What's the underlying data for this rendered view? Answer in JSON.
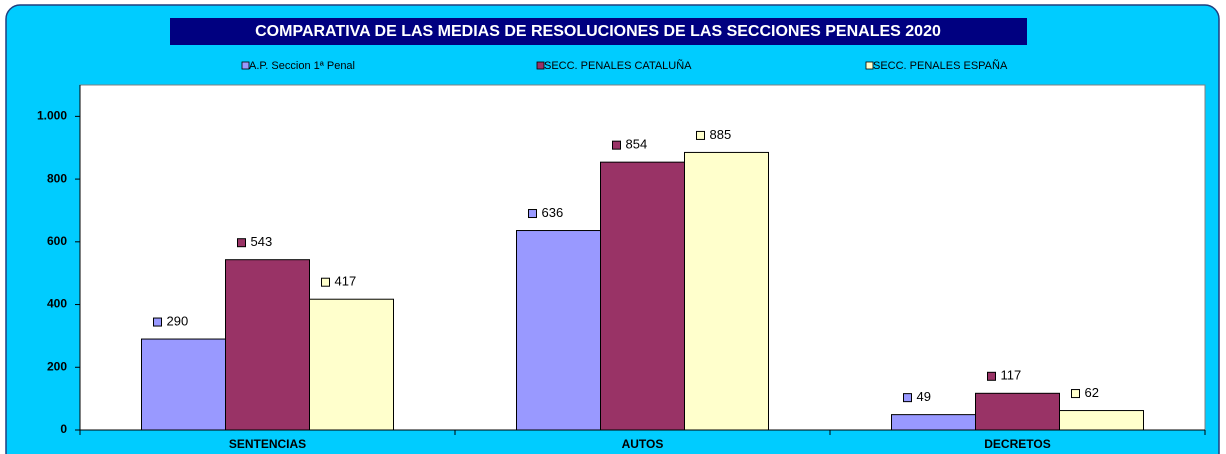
{
  "chart_data": {
    "type": "bar",
    "title": "COMPARATIVA DE LAS MEDIAS DE RESOLUCIONES  DE LAS SECCIONES PENALES  2020",
    "categories": [
      "SENTENCIAS",
      "AUTOS",
      "DECRETOS"
    ],
    "series": [
      {
        "name": "A.P. Seccion 1ª Penal",
        "color": "#9999ff",
        "values": [
          290,
          636,
          49
        ]
      },
      {
        "name": "SECC. PENALES CATALUÑA",
        "color": "#993366",
        "values": [
          543,
          854,
          117
        ]
      },
      {
        "name": "SECC. PENALES ESPAÑA",
        "color": "#ffffcc",
        "values": [
          417,
          885,
          62
        ]
      }
    ],
    "ylim": [
      0,
      1100
    ],
    "yticks": [
      0,
      200,
      400,
      600,
      800,
      {
        "value": 1000,
        "label": "1.000"
      }
    ],
    "legend": "top"
  }
}
